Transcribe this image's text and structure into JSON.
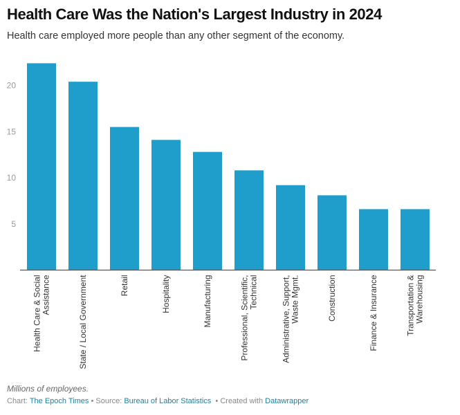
{
  "header": {
    "title": "Health Care Was the Nation's Largest Industry in 2024",
    "subtitle": "Health care employed more people than any other segment of the economy."
  },
  "footer": {
    "notes": "Millions of employees.",
    "chart_prefix": "Chart: ",
    "chart_by": "The Epoch Times",
    "source_prefix": " • Source: ",
    "source": "Bureau of Labor Statistics",
    "created_prefix": "  • Created with ",
    "created_with": "Datawrapper"
  },
  "colors": {
    "bar": "#1f9dcb",
    "axis": "#555555",
    "link": "#1d81a2"
  },
  "chart_data": {
    "type": "bar",
    "title": "Health Care Was the Nation's Largest Industry in 2024",
    "subtitle": "Health care employed more people than any other segment of the economy.",
    "xlabel": "",
    "ylabel": "Millions of employees",
    "ylim": [
      0,
      22.5
    ],
    "yticks": [
      5,
      10,
      15,
      20
    ],
    "grid": false,
    "categories": [
      [
        "Health Care & Social",
        "Assistance"
      ],
      [
        "State / Local Government"
      ],
      [
        "Retail"
      ],
      [
        "Hospitality"
      ],
      [
        "Manufacturing"
      ],
      [
        "Professional, Scientific,",
        "Technical"
      ],
      [
        "Administrative, Support,",
        "Waste Mgmt."
      ],
      [
        "Construction"
      ],
      [
        "Finance & Insurance"
      ],
      [
        "Transportation &",
        "Warehousing"
      ]
    ],
    "values": [
      22.4,
      20.4,
      15.5,
      14.1,
      12.8,
      10.8,
      9.2,
      8.1,
      6.6,
      6.6
    ]
  }
}
